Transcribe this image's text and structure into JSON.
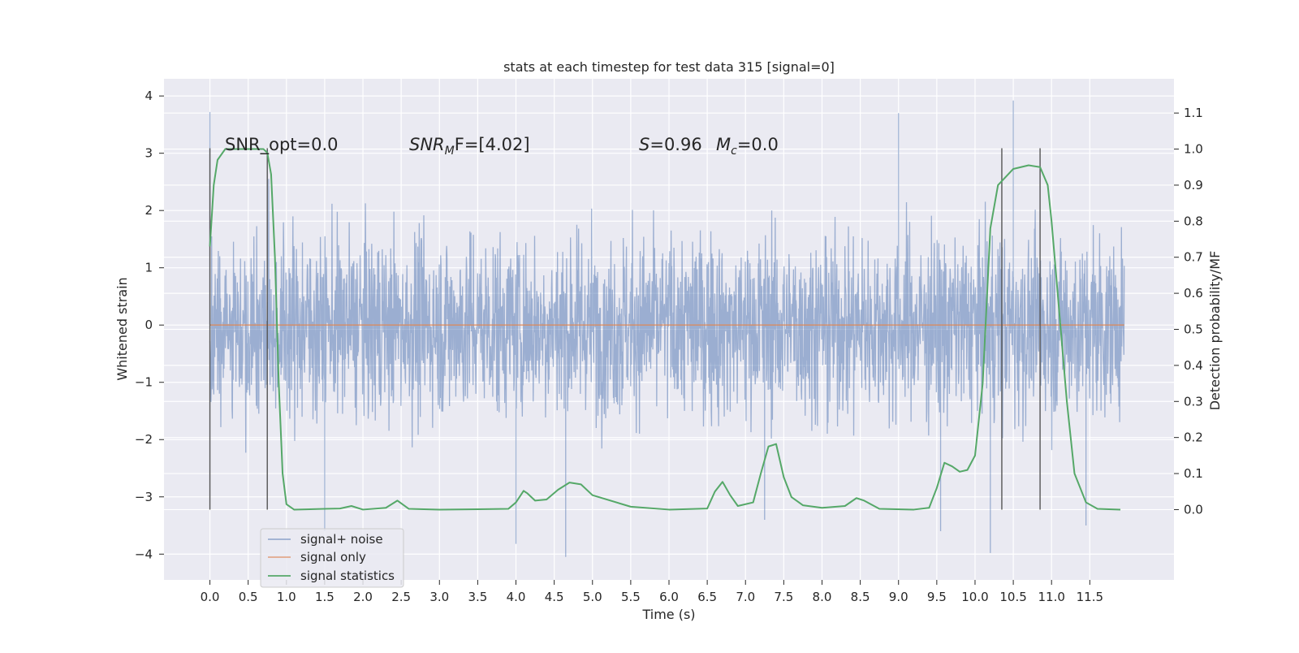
{
  "chart_data": {
    "type": "line",
    "title": "stats at each timestep for test data 315 [signal=0]",
    "xlabel": "Time (s)",
    "ylabel_left": "Whitened strain",
    "ylabel_right": "Detection probability/MF",
    "xlim": [
      -0.6,
      12.6
    ],
    "ylim_left": [
      -4.45,
      4.3
    ],
    "ylim_right": [
      -0.195,
      1.195
    ],
    "x_ticks": [
      "0.0",
      "0.5",
      "1.0",
      "1.5",
      "2.0",
      "2.5",
      "3.0",
      "3.5",
      "4.0",
      "4.5",
      "5.0",
      "5.5",
      "6.0",
      "6.5",
      "7.0",
      "7.5",
      "8.0",
      "8.5",
      "9.0",
      "9.5",
      "10.0",
      "10.5",
      "11.0",
      "11.5"
    ],
    "y_ticks_left": [
      "4",
      "3",
      "2",
      "1",
      "0",
      "−1",
      "−2",
      "−3",
      "−4"
    ],
    "y_ticks_right": [
      "1.1",
      "1.0",
      "0.9",
      "0.8",
      "0.7",
      "0.6",
      "0.5",
      "0.4",
      "0.3",
      "0.2",
      "0.1",
      "0.0"
    ],
    "grid": true,
    "legend_placement": "lower-left",
    "annotations": {
      "snr_opt": "SNR_opt=0.0",
      "snr_mf_sym": "SNR",
      "snr_mf_sub": "M",
      "snr_mf_rest": "F=[4.02]",
      "s_sym": "S",
      "s_val": "=0.96",
      "mc_sym": "M",
      "mc_sub": "c",
      "mc_val": "=0.0"
    },
    "series": [
      {
        "name": "signal+ noise",
        "color": "#4c72b0",
        "description": "whitened strain noise, roughly symmetric about 0, envelope about ±2.5 with spikes",
        "peaks": [
          [
            0.0,
            3.72
          ],
          [
            1.5,
            -3.6
          ],
          [
            4.0,
            -3.82
          ],
          [
            4.65,
            -4.05
          ],
          [
            7.25,
            -3.4
          ],
          [
            9.55,
            -3.6
          ],
          [
            9.0,
            3.7
          ],
          [
            10.2,
            -3.98
          ],
          [
            10.5,
            3.92
          ],
          [
            11.45,
            -3.5
          ]
        ]
      },
      {
        "name": "signal only",
        "color": "#dd8452",
        "x": [
          0.0,
          11.95
        ],
        "y": [
          0.0,
          0.0
        ]
      },
      {
        "name": "signal statistics",
        "color": "#55a868",
        "x": [
          0.0,
          0.05,
          0.1,
          0.2,
          0.4,
          0.6,
          0.7,
          0.75,
          0.8,
          0.85,
          0.9,
          0.95,
          1.0,
          1.1,
          1.5,
          1.7,
          1.85,
          2.0,
          2.3,
          2.45,
          2.6,
          3.0,
          3.5,
          3.9,
          4.0,
          4.1,
          4.15,
          4.25,
          4.4,
          4.55,
          4.7,
          4.85,
          5.0,
          5.5,
          6.0,
          6.5,
          6.6,
          6.7,
          6.8,
          6.9,
          7.1,
          7.2,
          7.3,
          7.4,
          7.5,
          7.6,
          7.75,
          8.0,
          8.3,
          8.45,
          8.55,
          8.75,
          9.2,
          9.4,
          9.5,
          9.6,
          9.7,
          9.8,
          9.9,
          10.0,
          10.1,
          10.2,
          10.3,
          10.5,
          10.7,
          10.85,
          10.95,
          11.0,
          11.2,
          11.3,
          11.45,
          11.6,
          11.9
        ],
        "y": [
          0.73,
          0.9,
          0.97,
          1.0,
          1.0,
          1.0,
          1.0,
          0.99,
          0.93,
          0.7,
          0.35,
          0.1,
          0.015,
          0.0,
          0.002,
          0.003,
          0.01,
          0.0,
          0.005,
          0.025,
          0.002,
          0.0,
          0.001,
          0.002,
          0.02,
          0.052,
          0.045,
          0.025,
          0.028,
          0.055,
          0.075,
          0.07,
          0.04,
          0.008,
          0.0,
          0.003,
          0.05,
          0.077,
          0.04,
          0.01,
          0.02,
          0.1,
          0.175,
          0.182,
          0.09,
          0.035,
          0.012,
          0.005,
          0.01,
          0.032,
          0.025,
          0.002,
          0.0,
          0.005,
          0.06,
          0.13,
          0.12,
          0.105,
          0.11,
          0.15,
          0.35,
          0.78,
          0.9,
          0.945,
          0.955,
          0.95,
          0.9,
          0.8,
          0.3,
          0.1,
          0.02,
          0.002,
          0.0
        ]
      }
    ],
    "vlines": [
      0.0,
      0.75,
      10.35,
      10.85
    ]
  }
}
